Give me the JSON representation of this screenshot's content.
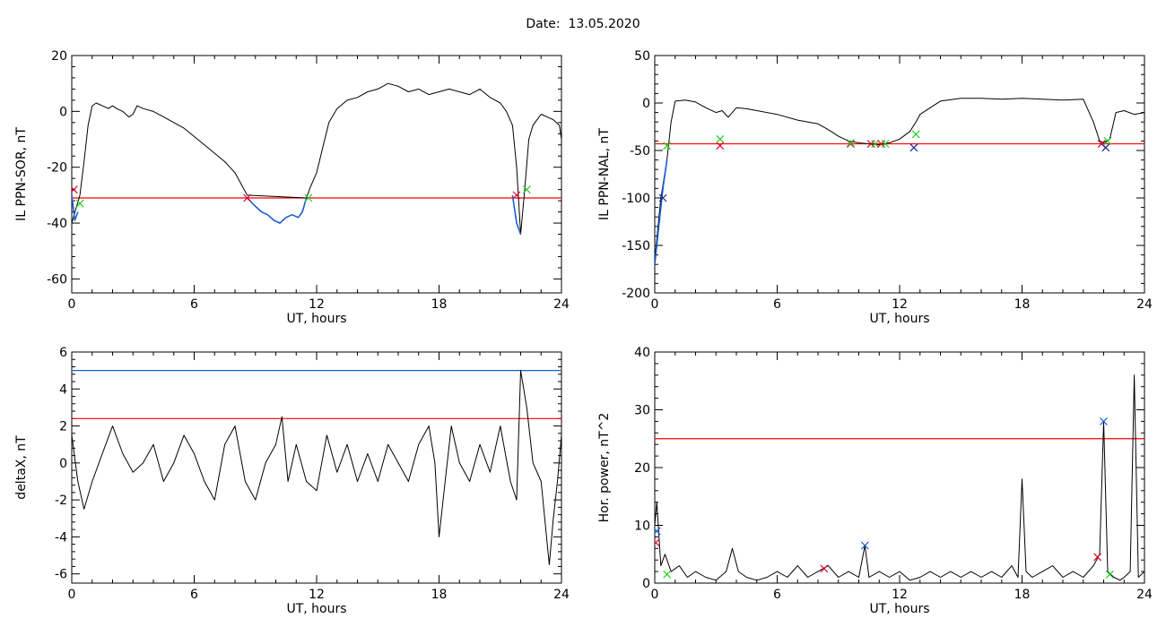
{
  "title": "Date:  13.05.2020",
  "colors": {
    "axis": "#000000",
    "trace": "#000000",
    "threshold_red": "#ff0000",
    "threshold_blue": "#1a5fd1",
    "marker_red": "#e0002a",
    "marker_green": "#22cc22",
    "marker_blue": "#1a5fd1",
    "marker_navy": "#1f1f8f"
  },
  "chart_data": [
    {
      "type": "line",
      "ylabel": "IL PPN-SOR, nT",
      "xlabel": "UT, hours",
      "xlim": [
        0,
        24
      ],
      "ylim": [
        -65,
        20
      ],
      "xticks": [
        "0",
        "6",
        "12",
        "18",
        "24"
      ],
      "yticks": [
        "20",
        "0",
        "-20",
        "-40",
        "-60"
      ],
      "ytick_values": [
        20,
        0,
        -20,
        -40,
        -60
      ],
      "series": [
        {
          "color": "black",
          "x": [
            0,
            0.2,
            0.4,
            0.6,
            0.8,
            1.0,
            1.2,
            1.5,
            1.8,
            2.0,
            2.2,
            2.5,
            2.8,
            3.0,
            3.2,
            3.5,
            4.0,
            4.5,
            5.0,
            5.5,
            6.0,
            6.5,
            7.0,
            7.5,
            8.0,
            8.3,
            8.6,
            11.5,
            11.7,
            12.0,
            12.3,
            12.6,
            13.0,
            13.5,
            14.0,
            14.5,
            15.0,
            15.5,
            16.0,
            16.5,
            17.0,
            17.5,
            18.0,
            18.5,
            19.0,
            19.5,
            20.0,
            20.5,
            21.0,
            21.3,
            21.6,
            21.8,
            22.0,
            22.2,
            22.4,
            22.6,
            22.8,
            23.0,
            23.3,
            23.6,
            23.9,
            24.0
          ],
          "y": [
            -40,
            -35,
            -30,
            -18,
            -5,
            2,
            3,
            2,
            1,
            2,
            1,
            0,
            -2,
            -1,
            2,
            1,
            0,
            -2,
            -4,
            -6,
            -9,
            -12,
            -15,
            -18,
            -22,
            -26,
            -30,
            -31,
            -27,
            -22,
            -13,
            -4,
            1,
            4,
            5,
            7,
            8,
            10,
            9,
            7,
            8,
            6,
            7,
            8,
            7,
            6,
            8,
            5,
            3,
            0,
            -5,
            -20,
            -44,
            -28,
            -10,
            -5,
            -3,
            -1,
            -2,
            -3,
            -5,
            -10
          ]
        },
        {
          "color": "blue",
          "x": [
            0,
            0.15,
            0.3
          ],
          "y": [
            -30,
            -39,
            -36
          ]
        },
        {
          "color": "blue",
          "x": [
            8.6,
            9.0,
            9.3,
            9.6,
            9.9,
            10.2,
            10.5,
            10.8,
            11.1,
            11.3,
            11.5
          ],
          "y": [
            -31,
            -34,
            -36,
            -37,
            -39,
            -40,
            -38,
            -37,
            -38,
            -36,
            -31
          ]
        },
        {
          "color": "blue",
          "x": [
            21.6,
            21.8,
            22.0
          ],
          "y": [
            -30,
            -40,
            -44
          ]
        }
      ],
      "hlines": [
        {
          "y": -31,
          "color": "red"
        }
      ],
      "markers": [
        {
          "x": 0.1,
          "y": -28,
          "color": "red"
        },
        {
          "x": 0.4,
          "y": -33,
          "color": "green"
        },
        {
          "x": 8.6,
          "y": -31,
          "color": "red"
        },
        {
          "x": 11.6,
          "y": -31,
          "color": "green"
        },
        {
          "x": 21.8,
          "y": -30,
          "color": "red"
        },
        {
          "x": 22.3,
          "y": -28,
          "color": "green"
        }
      ]
    },
    {
      "type": "line",
      "ylabel": "IL PPN-NAL, nT",
      "xlabel": "UT, hours",
      "xlim": [
        0,
        24
      ],
      "ylim": [
        -200,
        50
      ],
      "xticks": [
        "0",
        "6",
        "12",
        "18",
        "24"
      ],
      "yticks": [
        "50",
        "0",
        "-50",
        "-100",
        "-150",
        "-200"
      ],
      "ytick_values": [
        50,
        0,
        -50,
        -100,
        -150,
        -200
      ],
      "series": [
        {
          "color": "black",
          "x": [
            0,
            0.3,
            0.6,
            0.8,
            1.0,
            1.5,
            2.0,
            2.5,
            3.0,
            3.3,
            3.6,
            4.0,
            4.5,
            5.0,
            6.0,
            7.0,
            8.0,
            8.5,
            9.0,
            9.5,
            10.0,
            10.5,
            11.0,
            11.5,
            12.0,
            12.5,
            12.8,
            13.0,
            13.5,
            14.0,
            15.0,
            16.0,
            17.0,
            18.0,
            19.0,
            20.0,
            21.0,
            21.5,
            21.8,
            22.0,
            22.3,
            22.6,
            23.0,
            23.5,
            24.0
          ],
          "y": [
            -165,
            -100,
            -60,
            -20,
            2,
            3,
            1,
            -5,
            -10,
            -8,
            -15,
            -5,
            -6,
            -8,
            -12,
            -18,
            -22,
            -28,
            -35,
            -40,
            -42,
            -43,
            -44,
            -42,
            -38,
            -30,
            -20,
            -12,
            -5,
            2,
            5,
            5,
            4,
            5,
            4,
            3,
            4,
            -20,
            -40,
            -42,
            -38,
            -10,
            -8,
            -12,
            -10
          ]
        },
        {
          "color": "blue",
          "x": [
            0,
            0.2,
            0.4,
            0.6
          ],
          "y": [
            -170,
            -130,
            -90,
            -60
          ]
        }
      ],
      "hlines": [
        {
          "y": -43,
          "color": "red"
        }
      ],
      "markers": [
        {
          "x": 0.4,
          "y": -100,
          "color": "navy"
        },
        {
          "x": 0.6,
          "y": -45,
          "color": "green"
        },
        {
          "x": 3.2,
          "y": -45,
          "color": "red"
        },
        {
          "x": 3.2,
          "y": -38,
          "color": "green"
        },
        {
          "x": 9.6,
          "y": -43,
          "color": "red"
        },
        {
          "x": 9.6,
          "y": -42,
          "color": "green"
        },
        {
          "x": 10.6,
          "y": -43,
          "color": "red"
        },
        {
          "x": 10.8,
          "y": -43,
          "color": "green"
        },
        {
          "x": 11.1,
          "y": -43,
          "color": "red"
        },
        {
          "x": 11.3,
          "y": -43,
          "color": "green"
        },
        {
          "x": 12.7,
          "y": -47,
          "color": "navy"
        },
        {
          "x": 12.8,
          "y": -33,
          "color": "green"
        },
        {
          "x": 21.9,
          "y": -43,
          "color": "red"
        },
        {
          "x": 22.1,
          "y": -47,
          "color": "navy"
        },
        {
          "x": 22.2,
          "y": -40,
          "color": "green"
        }
      ]
    },
    {
      "type": "line",
      "ylabel": "deltaX, nT",
      "xlabel": "UT, hours",
      "xlim": [
        0,
        24
      ],
      "ylim": [
        -6.5,
        6
      ],
      "xticks": [
        "0",
        "6",
        "12",
        "18",
        "24"
      ],
      "yticks": [
        "6",
        "4",
        "2",
        "0",
        "-2",
        "-4",
        "-6"
      ],
      "ytick_values": [
        6,
        4,
        2,
        0,
        -2,
        -4,
        -6
      ],
      "series": [
        {
          "color": "black",
          "x": [
            0,
            0.3,
            0.6,
            1.0,
            1.5,
            2.0,
            2.5,
            3.0,
            3.5,
            4.0,
            4.5,
            5.0,
            5.5,
            6.0,
            6.5,
            7.0,
            7.5,
            8.0,
            8.5,
            9.0,
            9.5,
            10.0,
            10.3,
            10.6,
            11.0,
            11.5,
            12.0,
            12.5,
            13.0,
            13.5,
            14.0,
            14.5,
            15.0,
            15.5,
            16.0,
            16.5,
            17.0,
            17.5,
            17.8,
            18.0,
            18.3,
            18.6,
            19.0,
            19.5,
            20.0,
            20.5,
            21.0,
            21.5,
            21.8,
            22.0,
            22.3,
            22.6,
            23.0,
            23.4,
            23.6,
            23.8,
            24.0
          ],
          "y": [
            1.5,
            -1,
            -2.5,
            -1,
            0.5,
            2,
            0.5,
            -0.5,
            0,
            1,
            -1,
            0,
            1.5,
            0.5,
            -1,
            -2,
            1,
            2,
            -1,
            -2,
            0,
            1,
            2.5,
            -1,
            1,
            -1,
            -1.5,
            1.5,
            -0.5,
            1,
            -1,
            0.5,
            -1,
            1,
            0,
            -1,
            1,
            2,
            0,
            -4,
            -1,
            2,
            0,
            -1,
            1,
            -0.5,
            2,
            -1,
            -2,
            5,
            3,
            0,
            -1,
            -5.5,
            -3,
            -1,
            1.5
          ]
        }
      ],
      "hlines": [
        {
          "y": 5.0,
          "color": "blue"
        },
        {
          "y": 2.4,
          "color": "red"
        }
      ],
      "markers": []
    },
    {
      "type": "line",
      "ylabel": "Hor. power, nT^2",
      "xlabel": "UT, hours",
      "xlim": [
        0,
        24
      ],
      "ylim": [
        0,
        40
      ],
      "xticks": [
        "0",
        "6",
        "12",
        "18",
        "24"
      ],
      "yticks": [
        "40",
        "30",
        "20",
        "10",
        "0"
      ],
      "ytick_values": [
        40,
        30,
        20,
        10,
        0
      ],
      "series": [
        {
          "color": "black",
          "x": [
            0,
            0.1,
            0.3,
            0.5,
            0.8,
            1.2,
            1.6,
            2.0,
            2.5,
            3.0,
            3.5,
            3.8,
            4.1,
            4.5,
            5.0,
            5.5,
            6.0,
            6.5,
            7.0,
            7.5,
            8.0,
            8.5,
            9.0,
            9.5,
            10.0,
            10.3,
            10.5,
            11.0,
            11.5,
            12.0,
            12.5,
            13.0,
            13.5,
            14.0,
            14.5,
            15.0,
            15.5,
            16.0,
            16.5,
            17.0,
            17.5,
            17.8,
            18.0,
            18.2,
            18.5,
            19.0,
            19.5,
            20.0,
            20.5,
            21.0,
            21.5,
            21.8,
            22.0,
            22.2,
            22.5,
            22.8,
            23.0,
            23.3,
            23.5,
            23.7,
            24.0
          ],
          "y": [
            10,
            14,
            3,
            5,
            2,
            3,
            1,
            2,
            1,
            0.5,
            2,
            6,
            2,
            1,
            0.5,
            1,
            2,
            1,
            3,
            1,
            2,
            3,
            1,
            2,
            1,
            6.5,
            1,
            2,
            1,
            2,
            0.5,
            1,
            2,
            1,
            2,
            1,
            2,
            1,
            2,
            1,
            3,
            1,
            18,
            2,
            1,
            2,
            3,
            1,
            2,
            1,
            3,
            5,
            28,
            2,
            1,
            0.5,
            1,
            2,
            36,
            1,
            2
          ]
        }
      ],
      "hlines": [
        {
          "y": 25,
          "color": "red"
        }
      ],
      "markers": [
        {
          "x": 0.05,
          "y": 7,
          "color": "red"
        },
        {
          "x": 0.1,
          "y": 9,
          "color": "blue"
        },
        {
          "x": 0.6,
          "y": 1.5,
          "color": "green"
        },
        {
          "x": 8.3,
          "y": 2.5,
          "color": "red"
        },
        {
          "x": 10.3,
          "y": 6.5,
          "color": "blue"
        },
        {
          "x": 21.7,
          "y": 4.5,
          "color": "red"
        },
        {
          "x": 22.0,
          "y": 28,
          "color": "blue"
        },
        {
          "x": 22.3,
          "y": 1.5,
          "color": "green"
        }
      ]
    }
  ]
}
